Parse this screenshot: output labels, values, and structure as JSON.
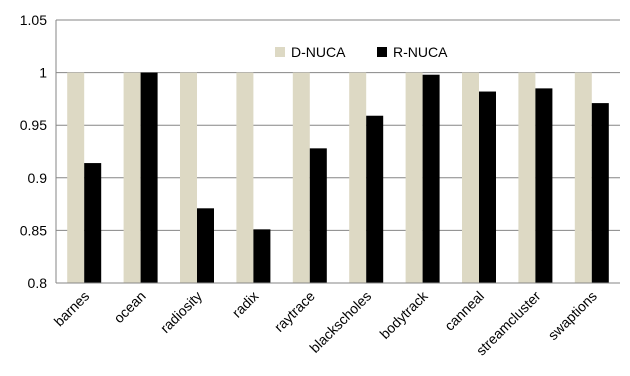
{
  "chart_data": {
    "type": "bar",
    "title": "",
    "xlabel": "",
    "ylabel": "",
    "categories": [
      "barnes",
      "ocean",
      "radiosity",
      "radix",
      "raytrace",
      "blackscholes",
      "bodytrack",
      "canneal",
      "streamcluster",
      "swaptions"
    ],
    "series": [
      {
        "name": "D-NUCA",
        "color": "#ddd9c4",
        "values": [
          1,
          1,
          1,
          1,
          1,
          1,
          1,
          1,
          1,
          1
        ]
      },
      {
        "name": "R-NUCA",
        "color": "#000000",
        "values": [
          0.914,
          1.0,
          0.871,
          0.851,
          0.928,
          0.959,
          0.998,
          0.982,
          0.985,
          0.971
        ]
      }
    ],
    "ylim": [
      0.8,
      1.05
    ],
    "yticks": [
      "0.8",
      "0.85",
      "0.9",
      "0.95",
      "1",
      "1.05"
    ],
    "grid": true,
    "legend": "top-center"
  }
}
